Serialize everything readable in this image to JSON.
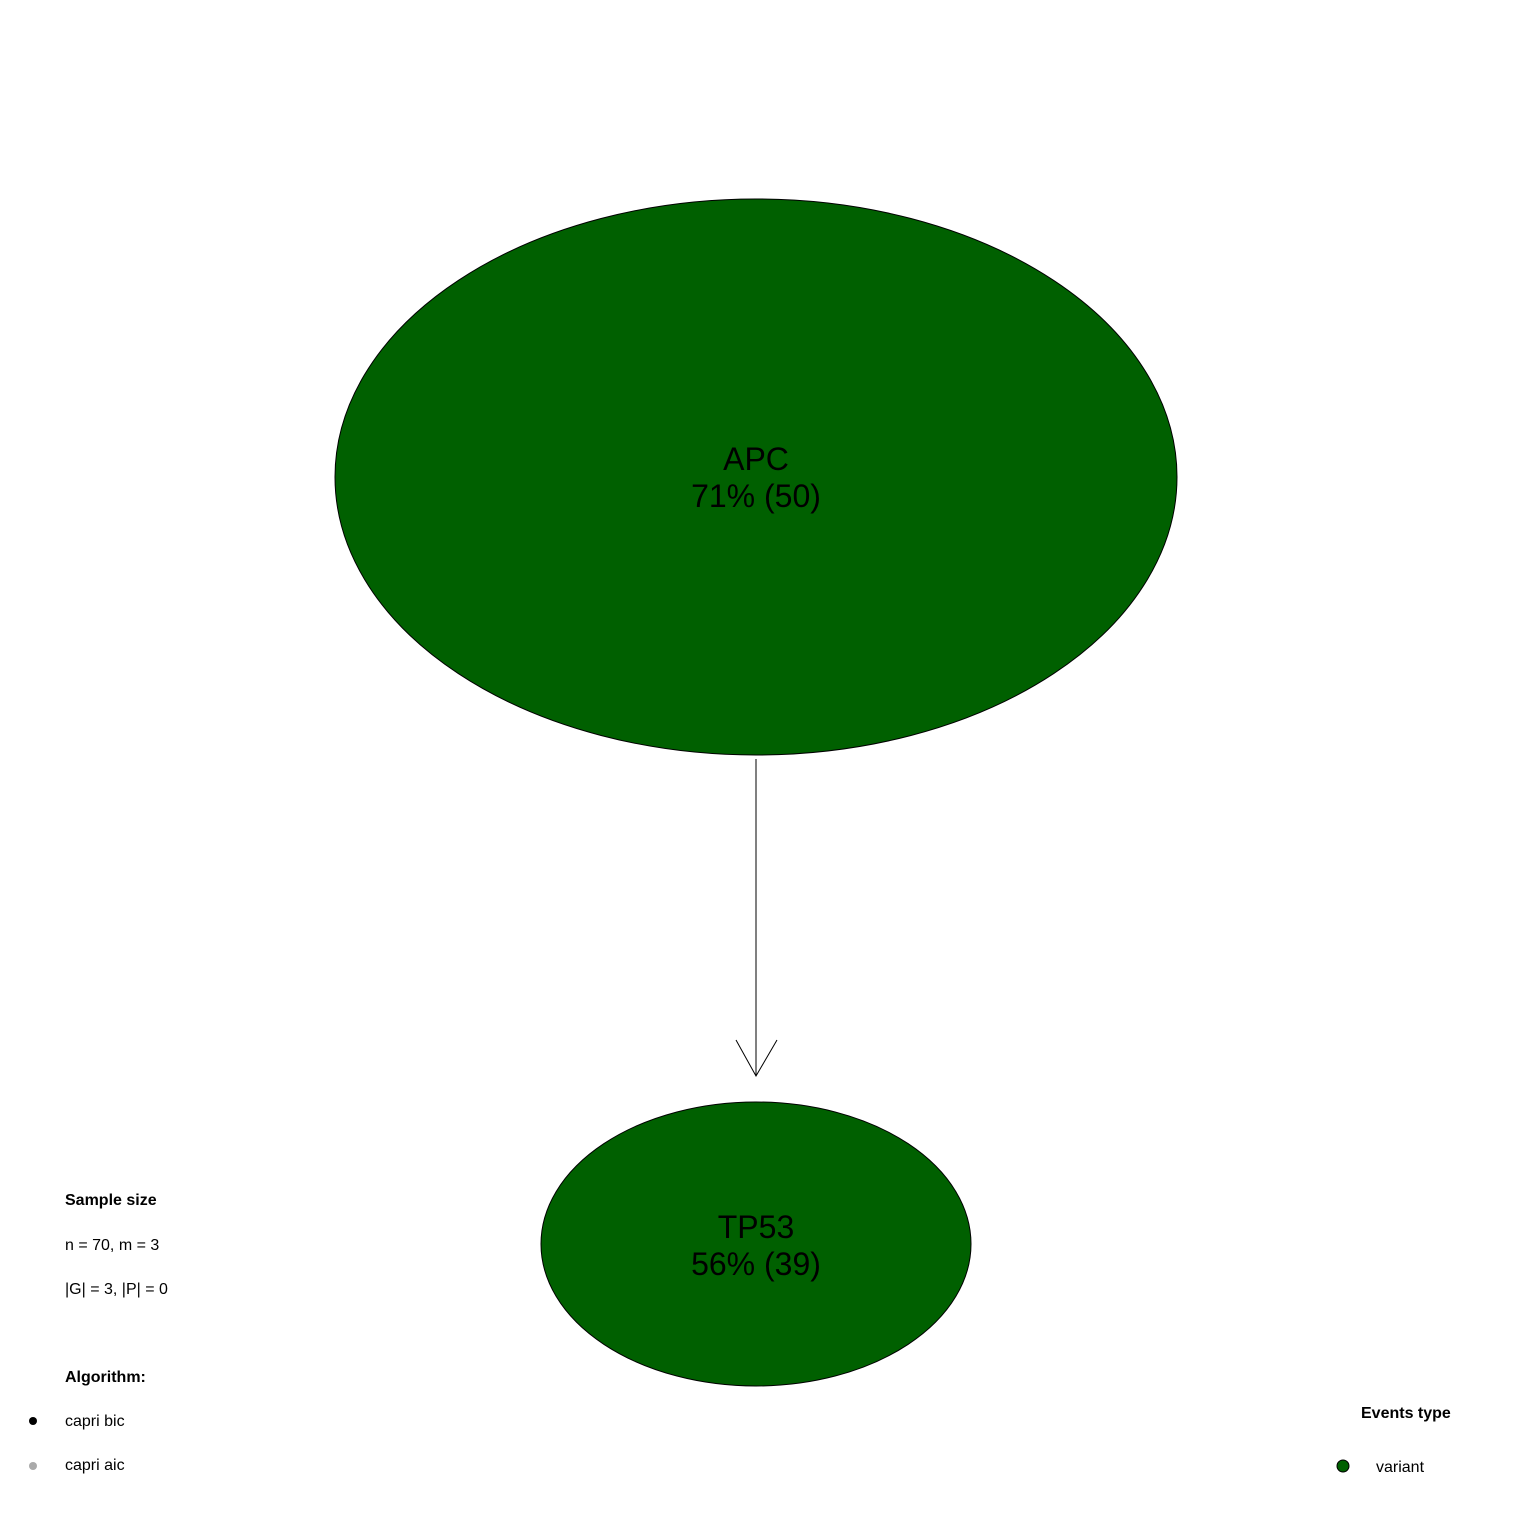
{
  "nodes": [
    {
      "id": "apc",
      "name": "APC",
      "frequency": "71% (50)",
      "color": "#006000"
    },
    {
      "id": "tp53",
      "name": "TP53",
      "frequency": "56% (39)",
      "color": "#006000"
    }
  ],
  "edges": [
    {
      "from": "APC",
      "to": "TP53",
      "color": "#000000"
    }
  ],
  "legend_sample": {
    "title": "Sample size",
    "line1": "n = 70, m = 3",
    "line2": "|G| = 3, |P| = 0"
  },
  "legend_algorithm": {
    "title": "Algorithm:",
    "items": [
      {
        "label": "capri bic",
        "color": "#000000"
      },
      {
        "label": "capri aic",
        "color": "#aaaaaa"
      }
    ]
  },
  "legend_events": {
    "title": "Events type",
    "items": [
      {
        "label": "variant",
        "color": "#006000"
      }
    ]
  }
}
